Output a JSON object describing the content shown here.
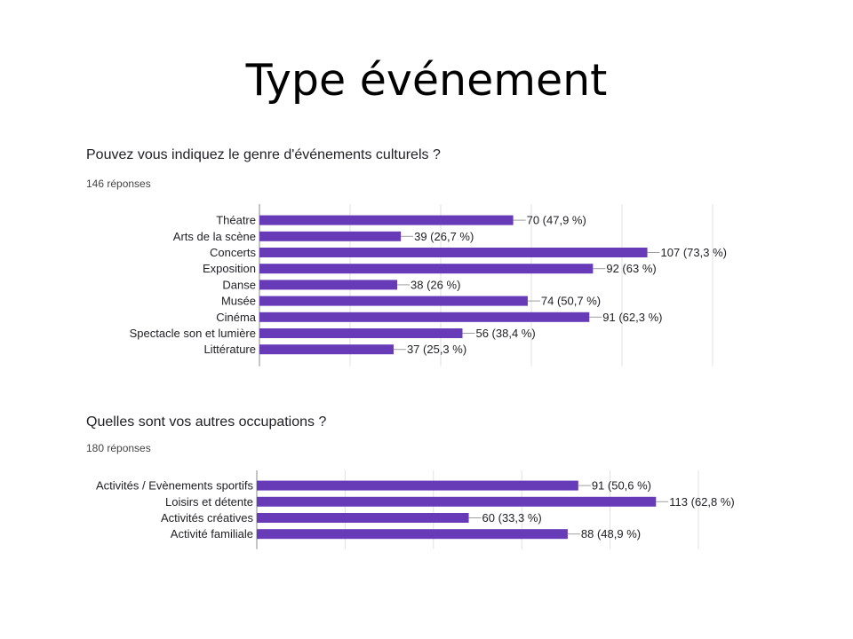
{
  "slide": {
    "title": "Type événement"
  },
  "chart_data": [
    {
      "type": "bar",
      "orientation": "horizontal",
      "title": "Pouvez vous indiquez le genre d'événements culturels ?",
      "subtitle": "146 réponses",
      "categories": [
        "Théatre",
        "Arts de la scène",
        "Concerts",
        "Exposition",
        "Danse",
        "Musée",
        "Cinéma",
        "Spectacle son et lumière",
        "Littérature"
      ],
      "values": [
        70,
        39,
        107,
        92,
        38,
        74,
        91,
        56,
        37
      ],
      "data_labels": [
        "70 (47,9 %)",
        "39 (26,7 %)",
        "107 (73,3 %)",
        "92 (63 %)",
        "38 (26 %)",
        "74 (50,7 %)",
        "91 (62,3 %)",
        "56 (38,4 %)",
        "37 (25,3 %)"
      ],
      "xlim": [
        0,
        125
      ],
      "grid": true,
      "bar_color": "#673ab7"
    },
    {
      "type": "bar",
      "orientation": "horizontal",
      "title": "Quelles sont vos autres occupations ?",
      "subtitle": "180 réponses",
      "categories": [
        "Activités / Evènements sportifs",
        "Loisirs et détente",
        "Activités créatives",
        "Activité familiale"
      ],
      "values": [
        91,
        113,
        60,
        88
      ],
      "data_labels": [
        "91 (50,6 %)",
        "113 (62,8 %)",
        "60 (33,3 %)",
        "88 (48,9 %)"
      ],
      "xlim": [
        0,
        125
      ],
      "grid": true,
      "bar_color": "#673ab7"
    }
  ]
}
